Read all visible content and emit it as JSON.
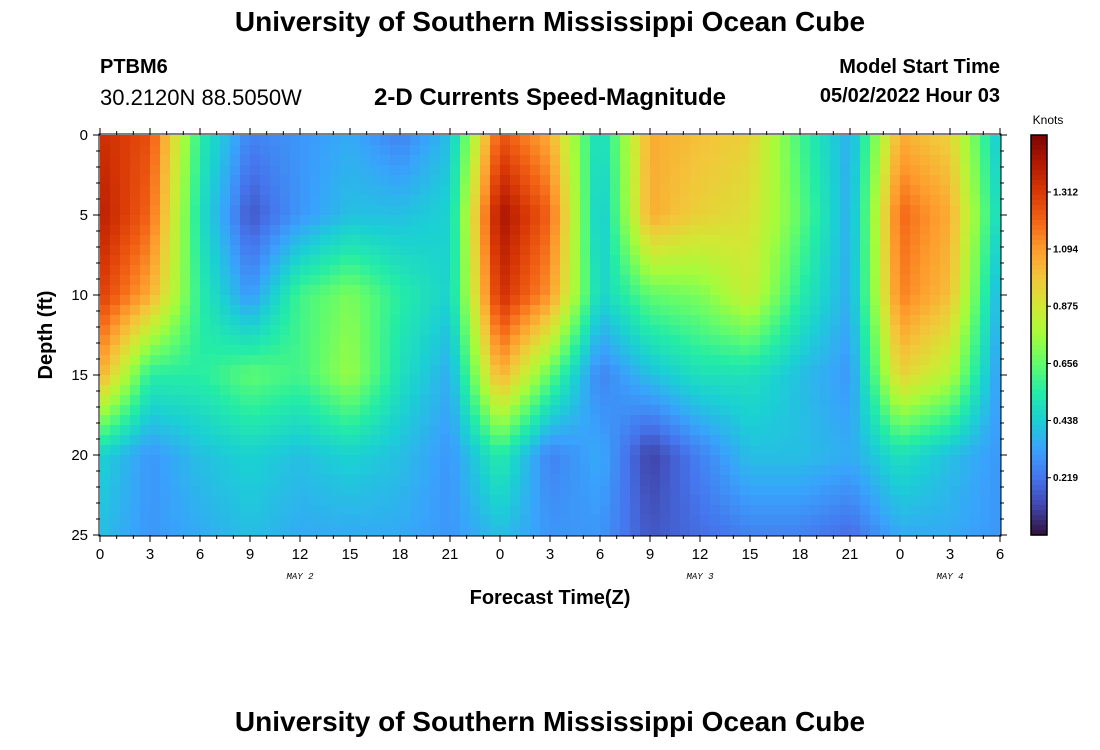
{
  "header": {
    "title": "University of Southern Mississippi Ocean Cube",
    "station_id": "PTBM6",
    "station_coords": "30.2120N  88.5050W",
    "subtitle": "2-D Currents Speed-Magnitude",
    "start_label": "Model Start Time",
    "start_value": "05/02/2022 Hour 03"
  },
  "footer": {
    "title": "University of Southern Mississippi Ocean Cube"
  },
  "chart_data": {
    "type": "heatmap",
    "title": "2-D Currents Speed-Magnitude",
    "xlabel": "Forecast Time(Z)",
    "ylabel": "Depth (ft)",
    "x_tick_labels": [
      "0",
      "3",
      "6",
      "9",
      "12",
      "15",
      "18",
      "21",
      "0",
      "3",
      "6",
      "9",
      "12",
      "15",
      "18",
      "21",
      "0",
      "3",
      "6"
    ],
    "x_range_hours": [
      0,
      54
    ],
    "date_labels": [
      {
        "label": "MAY 2",
        "at_hour": 12
      },
      {
        "label": "MAY 3",
        "at_hour": 36
      },
      {
        "label": "MAY 4",
        "at_hour": 51
      }
    ],
    "y_tick_labels": [
      "0",
      "5",
      "10",
      "15",
      "20",
      "25"
    ],
    "y_range_ft": [
      0,
      25
    ],
    "y_inverted": true,
    "colorbar": {
      "unit": "Knots",
      "tick_labels": [
        "0.219",
        "0.438",
        "0.656",
        "0.875",
        "1.094",
        "1.312"
      ],
      "range": [
        0,
        1.53
      ],
      "colors": [
        "#30123b",
        "#4145ab",
        "#4675ed",
        "#39a2fc",
        "#1bcfd4",
        "#24eca6",
        "#61fc6c",
        "#a4fc3b",
        "#d1e834",
        "#f3c63a",
        "#fe9b2d",
        "#f36315",
        "#d93806",
        "#b11901",
        "#7a0402"
      ]
    },
    "z_approx": {
      "description_grid_hours": [
        0,
        3,
        6,
        9,
        12,
        15,
        18,
        21,
        24,
        27,
        30,
        33,
        36,
        39,
        42,
        45,
        48,
        51,
        54
      ],
      "depth_ft": [
        0,
        5,
        10,
        15,
        20,
        25
      ],
      "knots": [
        [
          1.35,
          1.25,
          0.55,
          0.25,
          0.3,
          0.35,
          0.25,
          0.4,
          1.25,
          1.05,
          0.45,
          1.05,
          1.0,
          0.95,
          0.6,
          0.35,
          1.05,
          0.95,
          0.4
        ],
        [
          1.4,
          1.2,
          0.5,
          0.15,
          0.3,
          0.4,
          0.4,
          0.45,
          1.45,
          1.2,
          0.4,
          1.05,
          0.95,
          0.9,
          0.65,
          0.35,
          1.2,
          1.05,
          0.45
        ],
        [
          1.3,
          1.05,
          0.55,
          0.3,
          0.6,
          0.7,
          0.55,
          0.45,
          1.35,
          1.1,
          0.45,
          0.65,
          0.7,
          0.85,
          0.55,
          0.35,
          1.15,
          1.0,
          0.35
        ],
        [
          1.05,
          0.55,
          0.55,
          0.65,
          0.6,
          0.75,
          0.5,
          0.35,
          1.05,
          0.65,
          0.25,
          0.4,
          0.5,
          0.5,
          0.4,
          0.3,
          0.95,
          0.8,
          0.3
        ],
        [
          0.45,
          0.3,
          0.4,
          0.45,
          0.4,
          0.45,
          0.4,
          0.3,
          0.55,
          0.25,
          0.35,
          0.1,
          0.25,
          0.4,
          0.4,
          0.35,
          0.5,
          0.4,
          0.3
        ],
        [
          0.4,
          0.3,
          0.35,
          0.4,
          0.35,
          0.35,
          0.35,
          0.3,
          0.4,
          0.3,
          0.3,
          0.15,
          0.2,
          0.25,
          0.25,
          0.2,
          0.35,
          0.35,
          0.3
        ]
      ]
    }
  }
}
